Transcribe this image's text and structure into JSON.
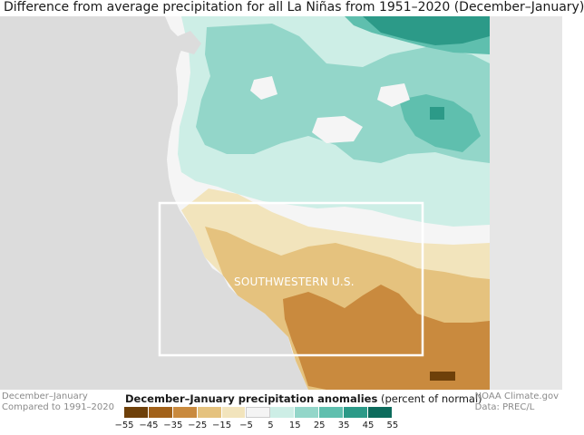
{
  "title": "Difference from average precipitation for all La Niñas from 1951–2020 (December–January)",
  "map": {
    "region_label": "SOUTHWESTERN U.S.",
    "colors": {
      "ocean": "#dcdcdc",
      "land_grey": "#e3e3e3",
      "neutral": "#f5f5f5",
      "box": "#ffffff"
    }
  },
  "legend": {
    "title_bold": "December–January precipitation anomalies",
    "title_rest": " (percent of normal)",
    "ticks": [
      "−55",
      "−45",
      "−35",
      "−25",
      "−15",
      "−5",
      "5",
      "15",
      "25",
      "35",
      "45",
      "55"
    ],
    "colors": [
      "#6e4009",
      "#a2621a",
      "#c98a3e",
      "#e5c27e",
      "#f2e4bc",
      "#f4f4f4",
      "#cdeee6",
      "#93d6c9",
      "#5fbfae",
      "#2c9a88",
      "#0d6b5c"
    ]
  },
  "footer_left": {
    "line1": "December–January",
    "line2": "Compared to 1991–2020"
  },
  "footer_right": {
    "line1": "NOAA Climate.gov",
    "line2": "Data: PREC/L"
  }
}
